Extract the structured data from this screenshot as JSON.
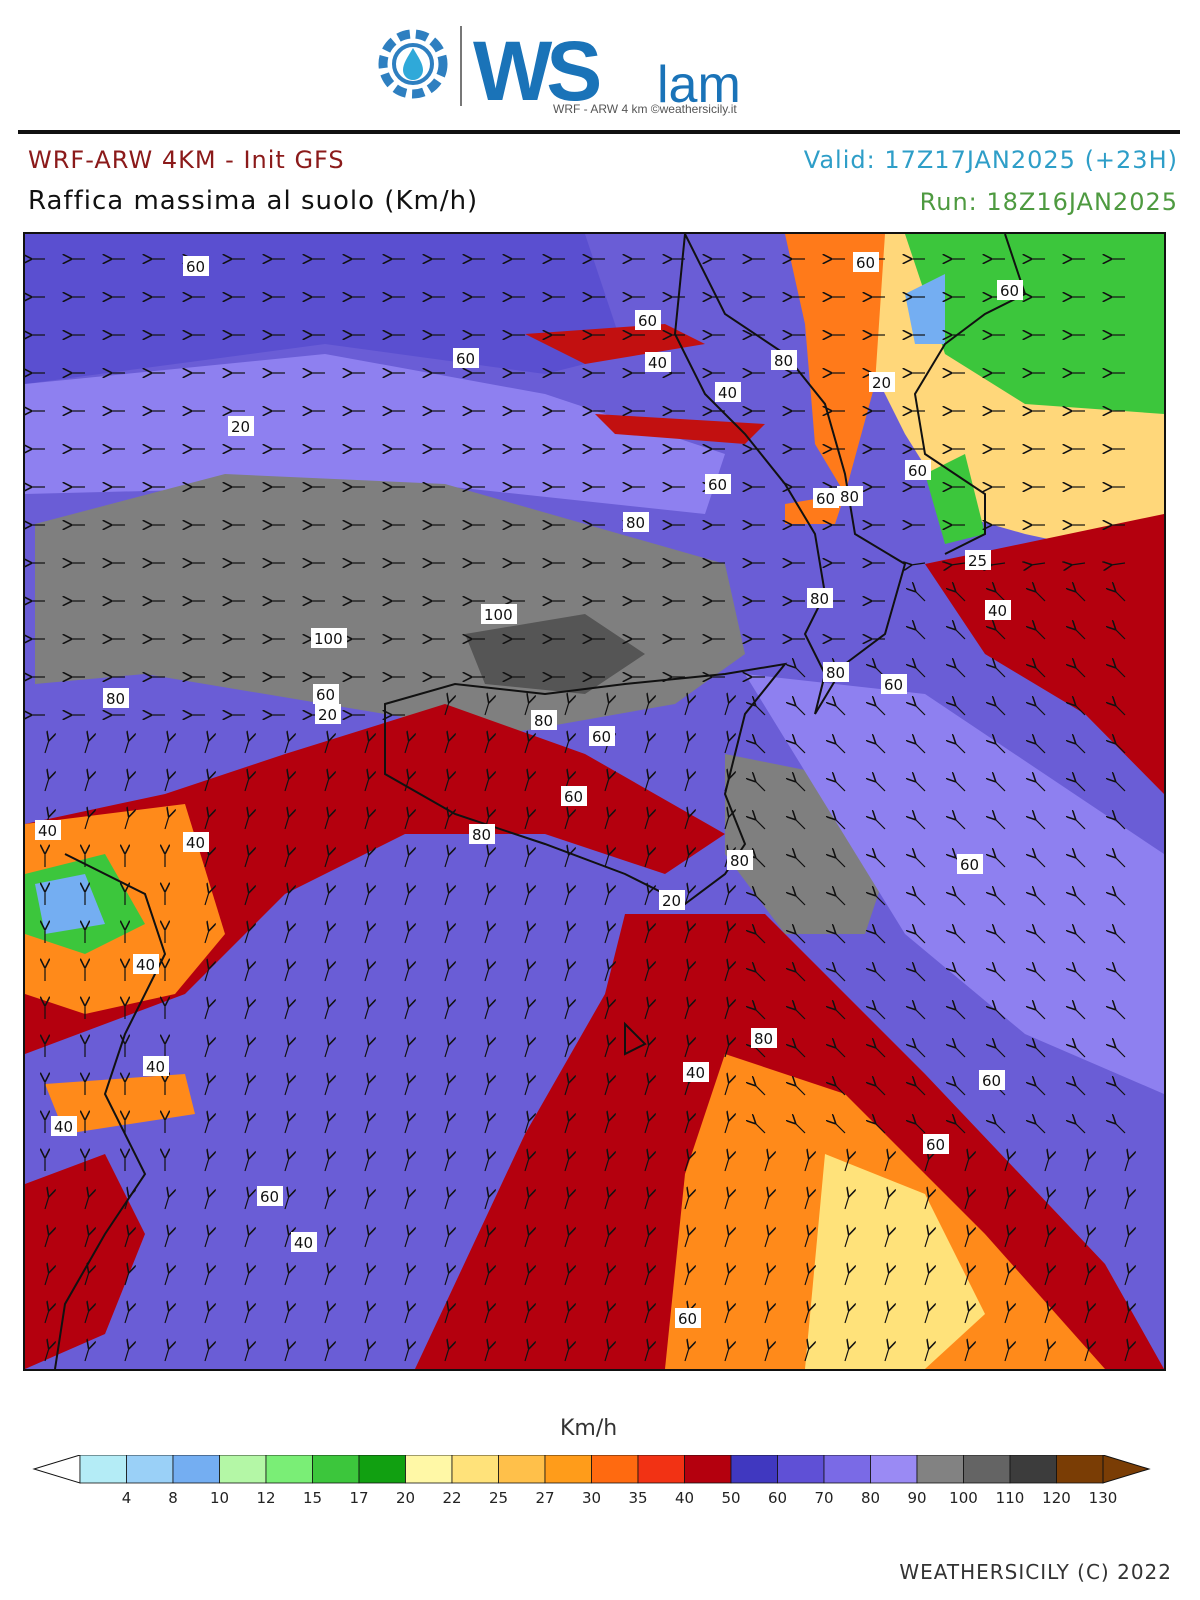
{
  "logo": {
    "brand": "WS",
    "suffix": "lam",
    "tagline": "WRF - ARW 4 km ©weathersicily.it",
    "icon": "gear-droplet-icon"
  },
  "header": {
    "model_title": "WRF-ARW 4KM - Init GFS",
    "field_title": "Raffica massima al suolo (Km/h)",
    "valid": "Valid: 17Z17JAN2025 (+23H)",
    "run": "Run: 18Z16JAN2025"
  },
  "map": {
    "contour_labels": [
      "60",
      "60",
      "60",
      "40",
      "60",
      "60",
      "80",
      "40",
      "20",
      "20",
      "60",
      "60",
      "80",
      "80",
      "60",
      "25",
      "80",
      "100",
      "100",
      "40",
      "80",
      "60",
      "80",
      "60",
      "20",
      "80",
      "60",
      "60",
      "40",
      "40",
      "80",
      "80",
      "60",
      "20",
      "40",
      "40",
      "40",
      "40",
      "80",
      "60",
      "60",
      "60",
      "40",
      "60"
    ]
  },
  "legend": {
    "unit": "Km/h",
    "ticks": [
      "4",
      "8",
      "10",
      "12",
      "15",
      "17",
      "20",
      "22",
      "25",
      "27",
      "30",
      "35",
      "40",
      "50",
      "60",
      "70",
      "80",
      "90",
      "100",
      "110",
      "120",
      "130"
    ],
    "colors": [
      "#b4ecf6",
      "#9ad0f7",
      "#74aef2",
      "#b4f7a6",
      "#7aee76",
      "#3cc63c",
      "#11a011",
      "#fff8a6",
      "#ffe27a",
      "#ffc04a",
      "#ff9c1a",
      "#ff6a10",
      "#f23214",
      "#b4000e",
      "#4038c0",
      "#5f50d6",
      "#7a6ae6",
      "#9a8af4",
      "#828282",
      "#646464",
      "#3c3c3c",
      "#7a3d05"
    ],
    "below_color": "#ffffff",
    "above_color": "#7a3d05"
  },
  "footer": {
    "copyright": "WEATHERSICILY (C) 2022"
  }
}
